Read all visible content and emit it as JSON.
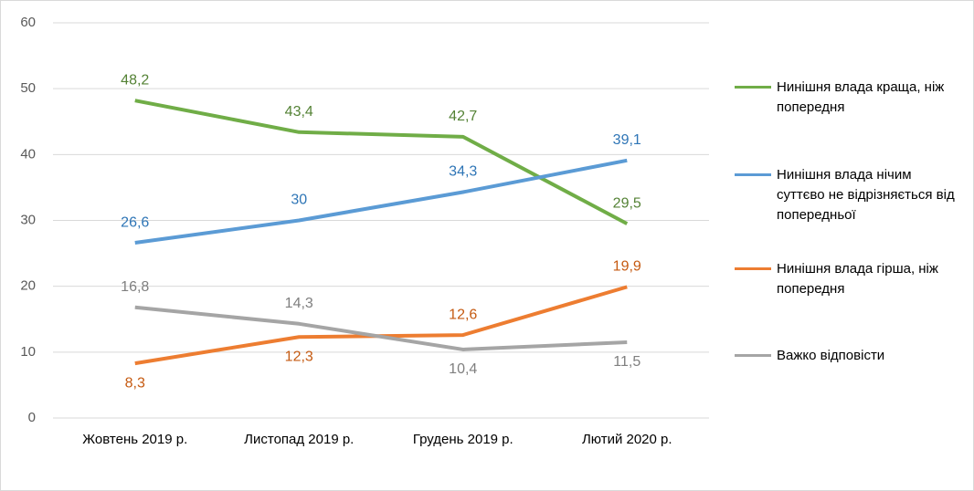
{
  "chart_data": {
    "type": "line",
    "categories": [
      "Жовтень 2019 р.",
      "Листопад 2019 р.",
      "Грудень 2019 р.",
      "Лютий 2020 р."
    ],
    "series": [
      {
        "name": "Нинішня влада краща, ніж попередня",
        "color": "#70ad47",
        "values": [
          48.2,
          43.4,
          42.7,
          29.5
        ],
        "value_labels": [
          "48,2",
          "43,4",
          "42,7",
          "29,5"
        ]
      },
      {
        "name": "Нинішня влада нічим суттєво не відрізняється від попередньої",
        "color": "#5b9bd5",
        "values": [
          26.6,
          30,
          34.3,
          39.1
        ],
        "value_labels": [
          "26,6",
          "30",
          "34,3",
          "39,1"
        ]
      },
      {
        "name": "Нинішня влада гірша, ніж попередня",
        "color": "#ed7d31",
        "values": [
          8.3,
          12.3,
          12.6,
          19.9
        ],
        "value_labels": [
          "8,3",
          "12,3",
          "12,6",
          "19,9"
        ]
      },
      {
        "name": "Важко відповісти",
        "color": "#a5a5a5",
        "values": [
          16.8,
          14.3,
          10.4,
          11.5
        ],
        "value_labels": [
          "16,8",
          "14,3",
          "10,4",
          "11,5"
        ]
      }
    ],
    "ylim": [
      0,
      60
    ],
    "yticks": [
      0,
      10,
      20,
      30,
      40,
      50,
      60
    ],
    "grid": true
  }
}
